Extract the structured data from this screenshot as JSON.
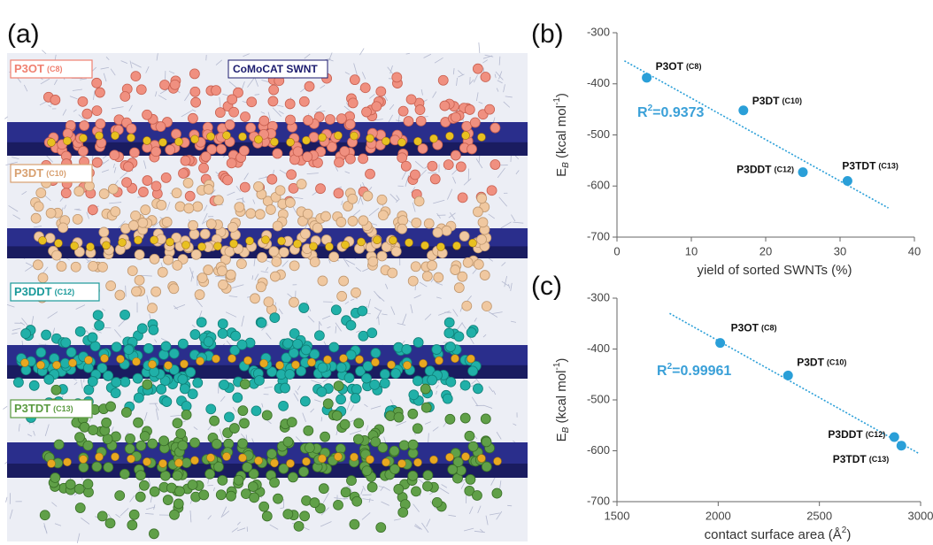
{
  "panel_a": {
    "letter": "(a)",
    "polymer_labels": [
      [
        "P3OT",
        "(C8)"
      ],
      [
        "P3DT",
        "(C10)"
      ],
      [
        "P3DDT",
        "(C12)"
      ],
      [
        "P3TDT",
        "(C13)"
      ]
    ],
    "tube_label": "CoMoCAT SWNT"
  },
  "chart_data": [
    {
      "type": "scatter",
      "letter": "(b)",
      "x_label": "yield of sorted SWNTs (%)",
      "y_label": {
        "main": "E",
        "sub": "B",
        "unit": " (kcal mol",
        "sup": "-1",
        "end": ")"
      },
      "x": [
        4,
        17,
        25,
        31
      ],
      "values": [
        -388,
        -452,
        -573,
        -590
      ],
      "point_labels": [
        [
          "P3OT",
          "(C8)"
        ],
        [
          "P3DT",
          "(C10)"
        ],
        [
          "P3DDT",
          "(C12)"
        ],
        [
          "P3TDT",
          "(C13)"
        ]
      ],
      "color": "#2a9fd8",
      "trendline": {
        "x": [
          1,
          36.5
        ],
        "y": [
          -355,
          -643
        ]
      },
      "annotation": {
        "main": "R",
        "sup": "2",
        "rest": "=0.9373"
      },
      "xlim": [
        0,
        40
      ],
      "xticks": [
        0,
        10,
        20,
        30,
        40
      ],
      "ylim": [
        -700,
        -300
      ],
      "yticks": [
        -300,
        -400,
        -500,
        -600,
        -700
      ]
    },
    {
      "type": "scatter",
      "letter": "(c)",
      "x_label": {
        "main": "contact surface area (Å",
        "sup": "2",
        "end": ")"
      },
      "y_label": {
        "main": "E",
        "sub": "B",
        "unit": " (kcal mol",
        "sup": "-1",
        "end": ")"
      },
      "x": [
        2010,
        2345,
        2870,
        2905
      ],
      "values": [
        -388,
        -452,
        -573,
        -590
      ],
      "point_labels": [
        [
          "P3OT",
          "(C8)"
        ],
        [
          "P3DT",
          "(C10)"
        ],
        [
          "P3DDT",
          "(C12)"
        ],
        [
          "P3TDT",
          "(C13)"
        ]
      ],
      "color": "#2a9fd8",
      "trendline": {
        "x": [
          1760,
          2990
        ],
        "y": [
          -330,
          -605
        ]
      },
      "annotation": {
        "main": "R",
        "sup": "2",
        "rest": "=0.99961"
      },
      "xlim": [
        1500,
        3000
      ],
      "xticks": [
        1500,
        2000,
        2500,
        3000
      ],
      "ylim": [
        -700,
        -300
      ],
      "yticks": [
        -300,
        -400,
        -500,
        -600,
        -700
      ]
    }
  ]
}
